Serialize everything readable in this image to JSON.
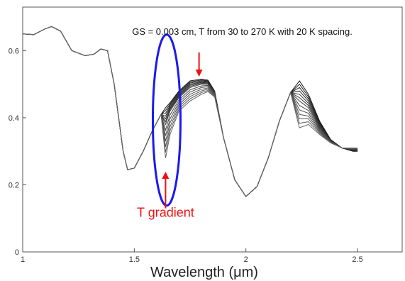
{
  "chart_data": {
    "type": "line",
    "title": "",
    "xlabel": "Wavelength (μm)",
    "ylabel": "",
    "xlim": [
      1.0,
      2.7
    ],
    "ylim": [
      0.0,
      0.73
    ],
    "xticks": [
      1,
      1.5,
      2,
      2.5
    ],
    "xtick_labels": [
      "1",
      "1.5",
      "2",
      "2.5"
    ],
    "yticks": [
      0,
      0.2,
      0.4,
      0.6
    ],
    "ytick_labels": [
      "0",
      "0.2",
      "0.4",
      "0.6"
    ],
    "grid": false,
    "legend": "none",
    "x_points": [
      1.0,
      1.05,
      1.1,
      1.13,
      1.17,
      1.22,
      1.28,
      1.32,
      1.35,
      1.38,
      1.41,
      1.43,
      1.45,
      1.47,
      1.5,
      1.54,
      1.58,
      1.62,
      1.64,
      1.66,
      1.7,
      1.75,
      1.8,
      1.83,
      1.86,
      1.9,
      1.95,
      2.0,
      2.05,
      2.1,
      2.15,
      2.2,
      2.24,
      2.28,
      2.33,
      2.38,
      2.43,
      2.48,
      2.5
    ],
    "series_count": 13,
    "series_params": {
      "T_start_K": 30,
      "T_end_K": 270,
      "T_step_K": 20
    },
    "series": [
      {
        "values": [
          0.65,
          0.648,
          0.665,
          0.672,
          0.658,
          0.6,
          0.585,
          0.59,
          0.605,
          0.6,
          0.5,
          0.4,
          0.3,
          0.245,
          0.25,
          0.3,
          0.36,
          0.41,
          0.43,
          0.445,
          0.48,
          0.51,
          0.515,
          0.512,
          0.48,
          0.34,
          0.215,
          0.165,
          0.195,
          0.28,
          0.39,
          0.475,
          0.51,
          0.47,
          0.39,
          0.335,
          0.31,
          0.3,
          0.3
        ]
      },
      {
        "values": [
          0.65,
          0.648,
          0.665,
          0.672,
          0.658,
          0.6,
          0.585,
          0.59,
          0.605,
          0.6,
          0.5,
          0.4,
          0.3,
          0.245,
          0.25,
          0.3,
          0.36,
          0.41,
          0.38,
          0.42,
          0.46,
          0.49,
          0.5,
          0.5,
          0.475,
          0.34,
          0.215,
          0.165,
          0.195,
          0.28,
          0.39,
          0.475,
          0.45,
          0.43,
          0.37,
          0.33,
          0.31,
          0.305,
          0.305
        ]
      },
      {
        "values": [
          0.65,
          0.648,
          0.665,
          0.672,
          0.658,
          0.6,
          0.585,
          0.59,
          0.605,
          0.6,
          0.5,
          0.4,
          0.3,
          0.245,
          0.25,
          0.3,
          0.36,
          0.41,
          0.28,
          0.35,
          0.42,
          0.45,
          0.47,
          0.478,
          0.462,
          0.34,
          0.215,
          0.165,
          0.195,
          0.28,
          0.39,
          0.475,
          0.37,
          0.38,
          0.35,
          0.325,
          0.31,
          0.31,
          0.31
        ]
      }
    ],
    "annotations": [
      {
        "text": "GS = 0.003 cm, T from 30 to 270 K with 20 K spacing.",
        "x": 1.49,
        "y": 0.648
      },
      {
        "text": "T gradient",
        "x": 1.64,
        "y": 0.105,
        "color": "#ee1111"
      }
    ],
    "arrows": [
      {
        "from": [
          1.79,
          0.595
        ],
        "to": [
          1.79,
          0.527
        ],
        "color": "#ee1111"
      },
      {
        "from": [
          1.64,
          0.13
        ],
        "to": [
          1.64,
          0.235
        ],
        "color": "#ee1111"
      }
    ],
    "highlight_ellipse": {
      "cx": 1.645,
      "cy": 0.393,
      "rx": 0.062,
      "ry": 0.255,
      "color": "#1a1aee"
    }
  }
}
